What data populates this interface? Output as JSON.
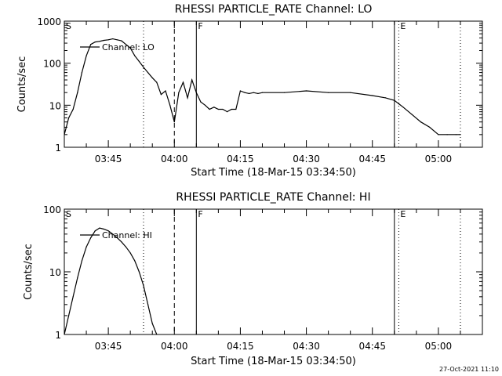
{
  "footer_timestamp": "27-Oct-2021 11:10",
  "colors": {
    "background": "#ffffff",
    "ink": "#000000"
  },
  "chart_data": [
    {
      "type": "line",
      "title": "RHESSI PARTICLE_RATE Channel: LO",
      "xlabel": "Start Time (18-Mar-15 03:34:50)",
      "ylabel": "Counts/sec",
      "yscale": "log",
      "ylim": [
        1,
        1000
      ],
      "xlim": [
        "03:35",
        "05:10"
      ],
      "y_ticks": [
        "1",
        "10",
        "100",
        "1000"
      ],
      "x_ticks": [
        "03:45",
        "04:00",
        "04:15",
        "04:30",
        "04:45",
        "05:00"
      ],
      "legend": "Channel: LO",
      "legend_position": "top-left",
      "markers": [
        {
          "label": "S",
          "time": "03:35",
          "style": "solid"
        },
        {
          "label": "",
          "time": "03:53",
          "style": "dotted"
        },
        {
          "label": "",
          "time": "04:00",
          "style": "dashed"
        },
        {
          "label": "F",
          "time": "04:05",
          "style": "solid"
        },
        {
          "label": "",
          "time": "04:50",
          "style": "solid"
        },
        {
          "label": "E",
          "time": "04:51",
          "style": "dotted"
        },
        {
          "label": "",
          "time": "05:05",
          "style": "dotted"
        }
      ],
      "series": [
        {
          "name": "Channel: LO",
          "x": [
            "03:35",
            "03:36",
            "03:37",
            "03:38",
            "03:39",
            "03:40",
            "03:41",
            "03:42",
            "03:43",
            "03:44",
            "03:45",
            "03:46",
            "03:47",
            "03:48",
            "03:49",
            "03:50",
            "03:51",
            "03:52",
            "03:53",
            "03:54",
            "03:55",
            "03:56",
            "03:57",
            "03:58",
            "03:59",
            "04:00",
            "04:01",
            "04:02",
            "04:03",
            "04:04",
            "04:05",
            "04:06",
            "04:07",
            "04:08",
            "04:09",
            "04:10",
            "04:11",
            "04:12",
            "04:13",
            "04:14",
            "04:15",
            "04:16",
            "04:17",
            "04:18",
            "04:19",
            "04:20",
            "04:25",
            "04:30",
            "04:35",
            "04:40",
            "04:45",
            "04:48",
            "04:50",
            "04:52",
            "04:54",
            "04:56",
            "04:58",
            "05:00",
            "05:02",
            "05:04",
            "05:05"
          ],
          "y": [
            2,
            5,
            8,
            20,
            60,
            150,
            280,
            320,
            330,
            350,
            360,
            380,
            360,
            340,
            280,
            230,
            150,
            110,
            80,
            60,
            45,
            35,
            18,
            22,
            10,
            4,
            20,
            35,
            15,
            40,
            20,
            12,
            10,
            8,
            9,
            8,
            8,
            7,
            8,
            8,
            22,
            20,
            19,
            20,
            19,
            20,
            20,
            22,
            20,
            20,
            17,
            15,
            13,
            9,
            6,
            4,
            3,
            2,
            2,
            2,
            2
          ]
        }
      ]
    },
    {
      "type": "line",
      "title": "RHESSI PARTICLE_RATE Channel: HI",
      "xlabel": "Start Time (18-Mar-15 03:34:50)",
      "ylabel": "Counts/sec",
      "yscale": "log",
      "ylim": [
        1,
        100
      ],
      "xlim": [
        "03:35",
        "05:10"
      ],
      "y_ticks": [
        "1",
        "10",
        "100"
      ],
      "x_ticks": [
        "03:45",
        "04:00",
        "04:15",
        "04:30",
        "04:45",
        "05:00"
      ],
      "legend": "Channel: HI",
      "legend_position": "top-left",
      "markers": [
        {
          "label": "S",
          "time": "03:35",
          "style": "solid"
        },
        {
          "label": "",
          "time": "03:53",
          "style": "dotted"
        },
        {
          "label": "",
          "time": "04:00",
          "style": "dashed"
        },
        {
          "label": "F",
          "time": "04:05",
          "style": "solid"
        },
        {
          "label": "",
          "time": "04:50",
          "style": "solid"
        },
        {
          "label": "E",
          "time": "04:51",
          "style": "dotted"
        },
        {
          "label": "",
          "time": "05:05",
          "style": "dotted"
        }
      ],
      "series": [
        {
          "name": "Channel: HI",
          "x": [
            "03:35",
            "03:36",
            "03:37",
            "03:38",
            "03:39",
            "03:40",
            "03:41",
            "03:42",
            "03:43",
            "03:44",
            "03:45",
            "03:46",
            "03:47",
            "03:48",
            "03:49",
            "03:50",
            "03:51",
            "03:52",
            "03:53",
            "03:54",
            "03:55",
            "03:56"
          ],
          "y": [
            1,
            2,
            4,
            8,
            15,
            25,
            35,
            45,
            50,
            48,
            45,
            40,
            35,
            30,
            25,
            20,
            15,
            10,
            6,
            3,
            1.5,
            1
          ]
        }
      ]
    }
  ]
}
